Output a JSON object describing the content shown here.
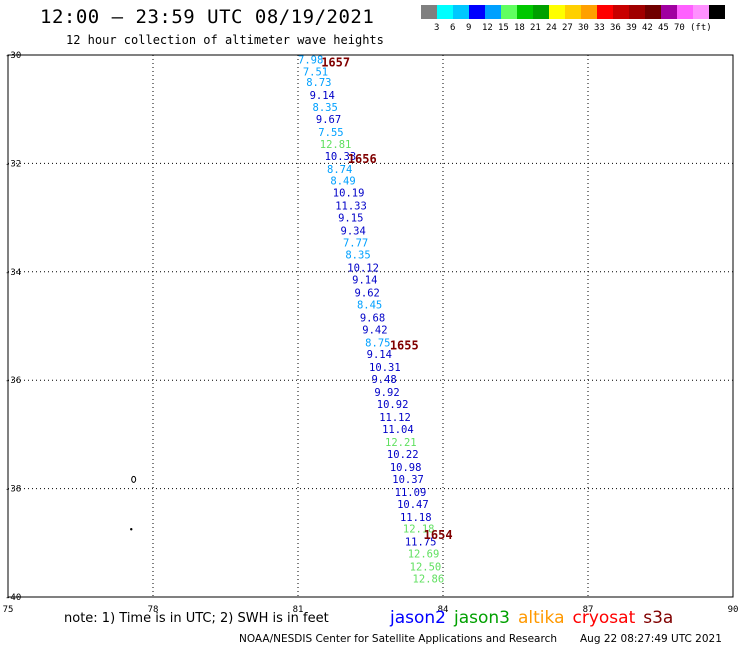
{
  "header": {
    "title": "12:00 – 23:59 UTC 08/19/2021",
    "subtitle": "12 hour collection of altimeter wave heights"
  },
  "color_scale": {
    "colors": [
      "#808080",
      "#00ffff",
      "#00c8ff",
      "#0000ff",
      "#00a0ff",
      "#60ff60",
      "#00c800",
      "#00a000",
      "#ffff00",
      "#ffd000",
      "#ffa000",
      "#ff0000",
      "#c80000",
      "#a00000",
      "#700000",
      "#a000a0",
      "#ff60ff",
      "#ff90ff",
      "#000000"
    ],
    "labels": [
      "3",
      "6",
      "9",
      "12",
      "15",
      "18",
      "21",
      "24",
      "27",
      "30",
      "33",
      "36",
      "39",
      "42",
      "45",
      "70",
      "(ft)"
    ]
  },
  "chart_data": {
    "type": "scatter",
    "x_axis": {
      "range": [
        75,
        90
      ],
      "ticks": [
        "75",
        "78",
        "81",
        "84",
        "87",
        "90"
      ]
    },
    "y_axis": {
      "range": [
        -40,
        -30
      ],
      "ticks": [
        "-30",
        "-32",
        "-34",
        "-36",
        "-38",
        "-40"
      ]
    },
    "grid": true,
    "points": [
      {
        "lon": 81.0,
        "lat": -30.08,
        "swh": "7.98",
        "color": "#00a0ff"
      },
      {
        "lon": 81.1,
        "lat": -30.3,
        "swh": "7.51",
        "color": "#00a0ff"
      },
      {
        "lon": 81.17,
        "lat": -30.5,
        "swh": "8.73",
        "color": "#00a0ff"
      },
      {
        "lon": 81.24,
        "lat": -30.74,
        "swh": "9.14",
        "color": "#0000c8"
      },
      {
        "lon": 81.3,
        "lat": -30.96,
        "swh": "8.35",
        "color": "#00a0ff"
      },
      {
        "lon": 81.37,
        "lat": -31.18,
        "swh": "9.67",
        "color": "#0000c8"
      },
      {
        "lon": 81.42,
        "lat": -31.42,
        "swh": "7.55",
        "color": "#00a0ff"
      },
      {
        "lon": 81.45,
        "lat": -31.64,
        "swh": "12.81",
        "color": "#60e060"
      },
      {
        "lon": 81.55,
        "lat": -31.86,
        "swh": "10.33",
        "color": "#0000c8"
      },
      {
        "lon": 81.6,
        "lat": -32.1,
        "swh": "8.74",
        "color": "#00a0ff"
      },
      {
        "lon": 81.67,
        "lat": -32.32,
        "swh": "8.49",
        "color": "#00a0ff"
      },
      {
        "lon": 81.72,
        "lat": -32.54,
        "swh": "10.19",
        "color": "#0000c8"
      },
      {
        "lon": 81.77,
        "lat": -32.78,
        "swh": "11.33",
        "color": "#0000c8"
      },
      {
        "lon": 81.83,
        "lat": -33.0,
        "swh": "9.15",
        "color": "#0000c8"
      },
      {
        "lon": 81.88,
        "lat": -33.24,
        "swh": "9.34",
        "color": "#0000c8"
      },
      {
        "lon": 81.93,
        "lat": -33.46,
        "swh": "7.77",
        "color": "#00a0ff"
      },
      {
        "lon": 81.98,
        "lat": -33.68,
        "swh": "8.35",
        "color": "#00a0ff"
      },
      {
        "lon": 82.02,
        "lat": -33.92,
        "swh": "10.12",
        "color": "#0000c8"
      },
      {
        "lon": 82.12,
        "lat": -34.14,
        "swh": "9.14",
        "color": "#0000c8"
      },
      {
        "lon": 82.17,
        "lat": -34.38,
        "swh": "9.62",
        "color": "#0000c8"
      },
      {
        "lon": 82.22,
        "lat": -34.6,
        "swh": "8.45",
        "color": "#00a0ff"
      },
      {
        "lon": 82.28,
        "lat": -34.84,
        "swh": "9.68",
        "color": "#0000c8"
      },
      {
        "lon": 82.33,
        "lat": -35.06,
        "swh": "9.42",
        "color": "#0000c8"
      },
      {
        "lon": 82.39,
        "lat": -35.3,
        "swh": "8.75",
        "color": "#00a0ff"
      },
      {
        "lon": 82.42,
        "lat": -35.52,
        "swh": "9.14",
        "color": "#0000c8"
      },
      {
        "lon": 82.47,
        "lat": -35.76,
        "swh": "10.31",
        "color": "#0000c8"
      },
      {
        "lon": 82.52,
        "lat": -35.98,
        "swh": "9.48",
        "color": "#0000c8"
      },
      {
        "lon": 82.58,
        "lat": -36.22,
        "swh": "9.92",
        "color": "#0000c8"
      },
      {
        "lon": 82.63,
        "lat": -36.44,
        "swh": "10.92",
        "color": "#0000c8"
      },
      {
        "lon": 82.68,
        "lat": -36.68,
        "swh": "11.12",
        "color": "#0000c8"
      },
      {
        "lon": 82.74,
        "lat": -36.9,
        "swh": "11.04",
        "color": "#0000c8"
      },
      {
        "lon": 82.8,
        "lat": -37.14,
        "swh": "12.21",
        "color": "#60e060"
      },
      {
        "lon": 82.84,
        "lat": -37.36,
        "swh": "10.22",
        "color": "#0000c8"
      },
      {
        "lon": 82.9,
        "lat": -37.6,
        "swh": "10.98",
        "color": "#0000c8"
      },
      {
        "lon": 82.95,
        "lat": -37.82,
        "swh": "10.37",
        "color": "#0000c8"
      },
      {
        "lon": 83.0,
        "lat": -38.06,
        "swh": "11.09",
        "color": "#0000c8"
      },
      {
        "lon": 83.05,
        "lat": -38.28,
        "swh": "10.47",
        "color": "#0000c8"
      },
      {
        "lon": 83.11,
        "lat": -38.52,
        "swh": "11.18",
        "color": "#0000c8"
      },
      {
        "lon": 83.17,
        "lat": -38.74,
        "swh": "12.18",
        "color": "#60e060"
      },
      {
        "lon": 83.21,
        "lat": -38.98,
        "swh": "11.75",
        "color": "#0000c8"
      },
      {
        "lon": 83.27,
        "lat": -39.2,
        "swh": "12.69",
        "color": "#60e060"
      },
      {
        "lon": 83.31,
        "lat": -39.44,
        "swh": "12.50",
        "color": "#60e060"
      },
      {
        "lon": 83.37,
        "lat": -39.66,
        "swh": "12.86",
        "color": "#60e060"
      }
    ],
    "time_labels": [
      {
        "lon": 81.48,
        "lat": -30.12,
        "text": "1657"
      },
      {
        "lon": 82.03,
        "lat": -31.9,
        "text": "1656"
      },
      {
        "lon": 82.9,
        "lat": -35.34,
        "text": "1655"
      },
      {
        "lon": 83.6,
        "lat": -38.84,
        "text": "1654"
      }
    ],
    "time_label_color": "#800000",
    "land_features": [
      {
        "lon": 77.6,
        "lat": -37.83,
        "shape": "ring"
      },
      {
        "lon": 77.55,
        "lat": -38.75,
        "shape": "dot"
      }
    ]
  },
  "footer": {
    "note": "note: 1) Time is in UTC; 2) SWH is in feet",
    "credit": "NOAA/NESDIS Center for Satellite Applications and Research",
    "timestamp": "Aug 22 08:27:49 UTC 2021"
  },
  "satellite_legend": [
    {
      "name": "jason2",
      "color": "#0000ff"
    },
    {
      "name": "jason3",
      "color": "#00a000"
    },
    {
      "name": "altika",
      "color": "#ff9900"
    },
    {
      "name": "cryosat",
      "color": "#ff0000"
    },
    {
      "name": "s3a",
      "color": "#800000"
    }
  ]
}
